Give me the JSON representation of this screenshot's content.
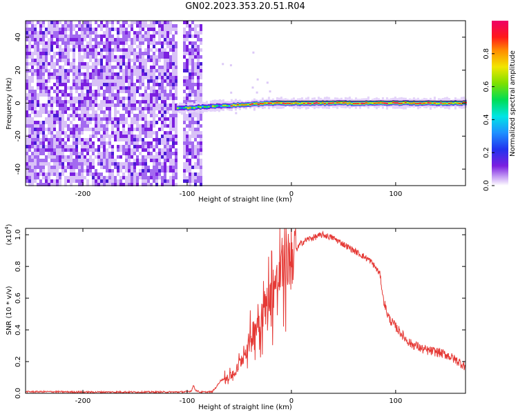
{
  "title": "GN02.2023.353.20.51.R04",
  "chart_data": [
    {
      "type": "heatmap",
      "title": "",
      "xlabel": "Height of straight line (km)",
      "ylabel": "Frequency (Hz)",
      "xlim": [
        -255,
        167
      ],
      "ylim": [
        -50,
        50
      ],
      "xticks": [
        -200,
        -100,
        0,
        100
      ],
      "yticks": [
        -40,
        -20,
        0,
        20,
        40
      ],
      "xtick_labels": [
        "-200",
        "-100",
        "0",
        "100"
      ],
      "ytick_labels": [
        "-40",
        "-20",
        "0",
        "20",
        "40"
      ],
      "colorbar": {
        "label": "Normalized spectral amplitude",
        "range": [
          0,
          1
        ],
        "ticks": [
          "0.0",
          "0.2",
          "0.4",
          "0.6",
          "0.8"
        ],
        "colormap": "white-violet-blue-cyan-green-yellow-red-magenta"
      },
      "features": {
        "noise_region_x": [
          -255,
          -88
        ],
        "gap_x": [
          -110,
          -104
        ],
        "signal_line_freq_hz": 0,
        "signal_start_x": -110,
        "signal_end_x": 167
      }
    },
    {
      "type": "line",
      "title": "",
      "xlabel": "Height of straight line (km)",
      "ylabel": "SNR (10 * v/v)",
      "ylabel_multiplier": "(x10",
      "ylabel_multiplier_exp": "4",
      "ylabel_multiplier_close": ")",
      "xlim": [
        -255,
        167
      ],
      "ylim": [
        0,
        1.04
      ],
      "xticks": [
        -200,
        -100,
        0,
        100
      ],
      "xtick_labels": [
        "-200",
        "-100",
        "0",
        "100"
      ],
      "yticks": [
        0,
        0.2,
        0.4,
        0.6,
        0.8,
        1.0
      ],
      "ytick_labels": [
        "0.0",
        "0.2",
        "0.4",
        "0.6",
        "0.8",
        "1.0"
      ],
      "series": [
        {
          "color": "#e53935",
          "x": [
            -255,
            -230,
            -200,
            -170,
            -140,
            -110,
            -100,
            -96,
            -94,
            -92,
            -88,
            -82,
            -76,
            -72,
            -68,
            -65,
            -60,
            -55,
            -50,
            -45,
            -40,
            -35,
            -30,
            -25,
            -20,
            -15,
            -10,
            -5,
            0,
            5,
            10,
            15,
            20,
            25,
            30,
            35,
            40,
            45,
            50,
            55,
            60,
            65,
            70,
            75,
            80,
            85,
            88,
            90,
            92,
            95,
            100,
            105,
            110,
            115,
            120,
            125,
            130,
            140,
            150,
            160,
            167
          ],
          "y": [
            0.01,
            0.01,
            0.008,
            0.008,
            0.008,
            0.008,
            0.01,
            0.015,
            0.05,
            0.02,
            0.008,
            0.008,
            0.01,
            0.04,
            0.08,
            0.09,
            0.1,
            0.12,
            0.18,
            0.25,
            0.33,
            0.42,
            0.48,
            0.55,
            0.62,
            0.68,
            0.75,
            0.8,
            0.86,
            0.91,
            0.95,
            0.97,
            0.98,
            0.99,
            1.0,
            0.99,
            0.98,
            0.96,
            0.94,
            0.92,
            0.9,
            0.88,
            0.86,
            0.84,
            0.8,
            0.75,
            0.6,
            0.55,
            0.5,
            0.46,
            0.42,
            0.38,
            0.34,
            0.31,
            0.3,
            0.28,
            0.27,
            0.26,
            0.24,
            0.2,
            0.17
          ]
        }
      ]
    }
  ]
}
